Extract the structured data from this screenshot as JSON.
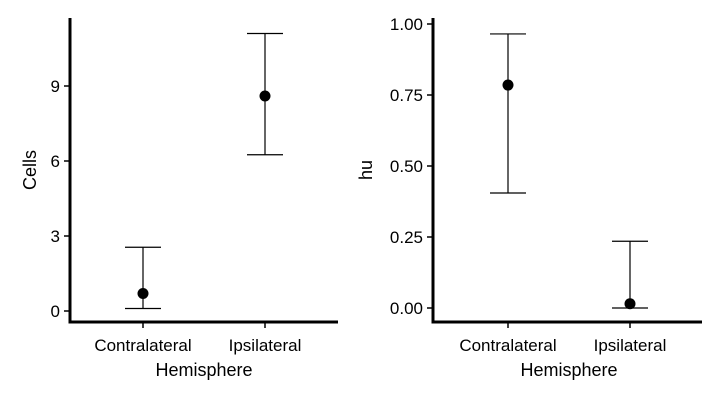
{
  "chart_data": [
    {
      "type": "scatter",
      "categories": [
        "Contralateral",
        "Ipsilateral"
      ],
      "xlabel": "Hemisphere",
      "ylabel": "Cells",
      "ylim": [
        0,
        11.3
      ],
      "yticks": [
        0,
        3,
        6,
        9
      ],
      "ytick_labels": [
        "0",
        "3",
        "6",
        "9"
      ],
      "grid": false,
      "series": [
        {
          "values": [
            0.7,
            8.6
          ],
          "lower": [
            0.1,
            6.25
          ],
          "upper": [
            2.55,
            11.1
          ]
        }
      ]
    },
    {
      "type": "scatter",
      "categories": [
        "Contralateral",
        "Ipsilateral"
      ],
      "xlabel": "Hemisphere",
      "ylabel": "hu",
      "ylim": [
        0,
        1.0
      ],
      "yticks": [
        0,
        0.25,
        0.5,
        0.75,
        1.0
      ],
      "ytick_labels": [
        "0.00",
        "0.25",
        "0.50",
        "0.75",
        "1.00"
      ],
      "grid": false,
      "series": [
        {
          "values": [
            0.785,
            0.015
          ],
          "lower": [
            0.405,
            0.0
          ],
          "upper": [
            0.965,
            0.235
          ]
        }
      ]
    }
  ]
}
